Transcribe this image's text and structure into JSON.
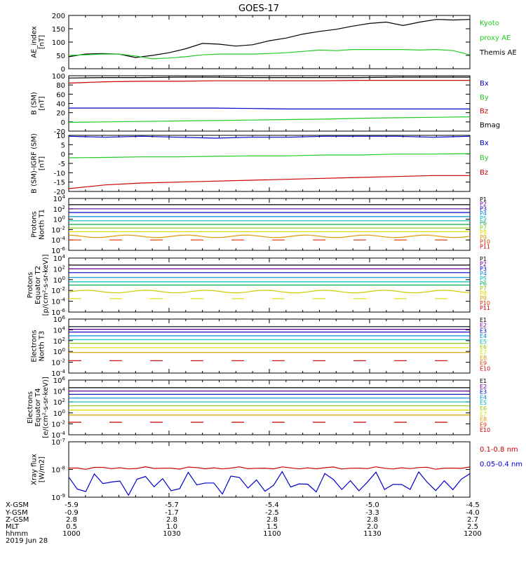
{
  "title": "GOES-17",
  "colors": {
    "black": "#000000",
    "green": "#22cc22",
    "red": "#cc0000",
    "blue": "#0000cc"
  },
  "chart_data": [
    {
      "type": "line",
      "ylabel": [
        "AE_index",
        "[nT]"
      ],
      "ylim": [
        0,
        200
      ],
      "yticks": [
        "0",
        "50",
        "100",
        "150",
        "200"
      ],
      "legend": [
        {
          "name": "Kyoto",
          "color": "#22cc22"
        },
        {
          "name": "proxy AE",
          "color": "#22cc22"
        },
        {
          "name": "Themis AE",
          "color": "#000000"
        }
      ],
      "x_hhmm": [
        1000,
        1005,
        1010,
        1015,
        1020,
        1025,
        1030,
        1035,
        1040,
        1045,
        1050,
        1055,
        1100,
        1105,
        1110,
        1115,
        1120,
        1125,
        1130,
        1135,
        1140,
        1145,
        1150,
        1155,
        1200
      ],
      "series": [
        {
          "name": "Themis AE",
          "color": "#000000",
          "values": [
            45,
            55,
            57,
            55,
            42,
            50,
            60,
            75,
            95,
            92,
            85,
            90,
            105,
            115,
            130,
            140,
            148,
            160,
            170,
            175,
            162,
            175,
            185,
            183,
            185
          ]
        },
        {
          "name": "Kyoto proxy AE",
          "color": "#22cc22",
          "values": [
            50,
            52,
            55,
            55,
            48,
            37,
            40,
            45,
            52,
            55,
            55,
            55,
            57,
            60,
            65,
            70,
            68,
            72,
            72,
            72,
            72,
            70,
            72,
            68,
            52
          ]
        }
      ]
    },
    {
      "type": "line",
      "ylabel": [
        "B (SM)",
        "[nT]"
      ],
      "ylim": [
        -20,
        100
      ],
      "yticks": [
        "-20",
        "0",
        "20",
        "40",
        "60",
        "80",
        "100"
      ],
      "legend": [
        {
          "name": "Bx",
          "color": "#0000cc"
        },
        {
          "name": "By",
          "color": "#22cc22"
        },
        {
          "name": "Bz",
          "color": "#cc0000"
        },
        {
          "name": "Bmag",
          "color": "#000000"
        }
      ],
      "series": [
        {
          "name": "Bmag",
          "color": "#000000",
          "values": [
            95,
            96,
            96,
            97,
            97,
            96,
            96,
            96,
            96,
            97,
            97,
            97
          ]
        },
        {
          "name": "Bz",
          "color": "#cc0000",
          "values": [
            84,
            87,
            88,
            88,
            89,
            89,
            89,
            89,
            90,
            90,
            90,
            90
          ]
        },
        {
          "name": "Bx",
          "color": "#0000cc",
          "values": [
            30,
            30,
            30,
            30,
            30,
            29,
            28,
            28,
            28,
            28,
            28,
            28
          ]
        },
        {
          "name": "By",
          "color": "#22cc22",
          "values": [
            -1,
            0,
            1,
            2,
            3,
            4,
            5,
            6,
            8,
            9,
            10,
            11
          ]
        }
      ]
    },
    {
      "type": "line",
      "ylabel": [
        "B (SM)-IGRF (SM)",
        "[nT]"
      ],
      "ylim": [
        -20,
        10
      ],
      "yticks": [
        "-20",
        "-15",
        "-10",
        "-5",
        "0",
        "5",
        "10"
      ],
      "legend": [
        {
          "name": "Bx",
          "color": "#0000cc"
        },
        {
          "name": "By",
          "color": "#22cc22"
        },
        {
          "name": "Bz",
          "color": "#cc0000"
        }
      ],
      "series": [
        {
          "name": "Bx",
          "color": "#0000cc",
          "values": [
            9.5,
            9.0,
            9.5,
            9.0,
            8.5,
            9.0,
            9.0,
            9.5,
            9.5,
            9.5,
            9.0,
            9.5
          ]
        },
        {
          "name": "By",
          "color": "#22cc22",
          "values": [
            -2.0,
            -1.8,
            -1.5,
            -1.5,
            -1.2,
            -1.0,
            -1.0,
            -0.5,
            -0.5,
            0.0,
            0.0,
            0.2
          ]
        },
        {
          "name": "Bz",
          "color": "#cc0000",
          "values": [
            -18.5,
            -16.5,
            -15.5,
            -15.0,
            -14.5,
            -14.0,
            -13.5,
            -13.0,
            -12.5,
            -12.0,
            -11.5,
            -11.5
          ]
        }
      ]
    },
    {
      "type": "line",
      "log_scale": true,
      "ylabel": [
        "Protons",
        "North T1"
      ],
      "ylim": [
        -6,
        4
      ],
      "yticks": [
        "10^-6",
        "10^-4",
        "10^-2",
        "10^0",
        "10^2",
        "10^4"
      ],
      "legend": [
        {
          "name": "P1",
          "color": "#000000"
        },
        {
          "name": "P2",
          "color": "#660099"
        },
        {
          "name": "P3",
          "color": "#0000cc"
        },
        {
          "name": "P4",
          "color": "#0088dd"
        },
        {
          "name": "P5",
          "color": "#00bbbb"
        },
        {
          "name": "P6",
          "color": "#00aa55"
        },
        {
          "name": "P7",
          "color": "#88cc00"
        },
        {
          "name": "P8",
          "color": "#dddd00"
        },
        {
          "name": "P9",
          "color": "#dd9900"
        },
        {
          "name": "P10",
          "color": "#dd3300"
        },
        {
          "name": "P11",
          "color": "#cc0000"
        }
      ],
      "series": [
        {
          "name": "P1",
          "color": "#000000",
          "level": 2.8
        },
        {
          "name": "P2",
          "color": "#660099",
          "level": 2.0
        },
        {
          "name": "P3",
          "color": "#0000cc",
          "level": 1.3
        },
        {
          "name": "P4",
          "color": "#0088dd",
          "level": 0.5
        },
        {
          "name": "P5",
          "color": "#00bbbb",
          "level": -0.3
        },
        {
          "name": "P6",
          "color": "#00aa55",
          "level": -1.0
        },
        {
          "name": "P7",
          "color": "#88cc00",
          "level": -1.7
        },
        {
          "name": "P8",
          "color": "#dddd00",
          "level": -2.4
        },
        {
          "name": "P9",
          "color": "#dd9900",
          "level": -3.3,
          "wavy": true
        },
        {
          "name": "P10",
          "color": "#dd3300",
          "level": -4.0,
          "dashed": true
        }
      ]
    },
    {
      "type": "line",
      "log_scale": true,
      "ylabel": [
        "Protons",
        "Equator T2",
        "[p/(cm²-s-sr-keV)]"
      ],
      "ylim": [
        -6,
        4
      ],
      "yticks": [
        "10^-6",
        "10^-4",
        "10^-2",
        "10^0",
        "10^2",
        "10^4"
      ],
      "legend": [
        {
          "name": "P1",
          "color": "#000000"
        },
        {
          "name": "P2",
          "color": "#660099"
        },
        {
          "name": "P3",
          "color": "#0000cc"
        },
        {
          "name": "P4",
          "color": "#0088dd"
        },
        {
          "name": "P5",
          "color": "#00bbbb"
        },
        {
          "name": "P6",
          "color": "#00aa55"
        },
        {
          "name": "P7",
          "color": "#88cc00"
        },
        {
          "name": "P8",
          "color": "#dddd00"
        },
        {
          "name": "P9",
          "color": "#dd9900"
        },
        {
          "name": "P10",
          "color": "#dd3300"
        },
        {
          "name": "P11",
          "color": "#cc0000"
        }
      ],
      "series": [
        {
          "name": "P1",
          "color": "#000000",
          "level": 2.7
        },
        {
          "name": "P2",
          "color": "#660099",
          "level": 2.0
        },
        {
          "name": "P3",
          "color": "#0000cc",
          "level": 1.3
        },
        {
          "name": "P4",
          "color": "#0088dd",
          "level": 0.4
        },
        {
          "name": "P5",
          "color": "#00bbbb",
          "level": -0.4
        },
        {
          "name": "P6",
          "color": "#00aa55",
          "level": -1.0
        },
        {
          "name": "P7",
          "color": "#cccc00",
          "level": -2.2,
          "wavy": true
        },
        {
          "name": "P8",
          "color": "#dddd00",
          "level": -3.5,
          "dashed": true
        }
      ]
    },
    {
      "type": "line",
      "log_scale": true,
      "ylabel": [
        "Electrons",
        "North T3"
      ],
      "ylim": [
        -4,
        6
      ],
      "yticks": [
        "10^-4",
        "10^-2",
        "10^0",
        "10^2",
        "10^4",
        "10^6"
      ],
      "legend": [
        {
          "name": "E1",
          "color": "#000000"
        },
        {
          "name": "E2",
          "color": "#660099"
        },
        {
          "name": "E3",
          "color": "#0000cc"
        },
        {
          "name": "E4",
          "color": "#0088dd"
        },
        {
          "name": "E5",
          "color": "#00bbbb"
        },
        {
          "name": "E6",
          "color": "#88cc00"
        },
        {
          "name": "E7",
          "color": "#dddd00"
        },
        {
          "name": "E8",
          "color": "#dd9900"
        },
        {
          "name": "E9",
          "color": "#dd3300"
        },
        {
          "name": "E10",
          "color": "#cc0000"
        }
      ],
      "series": [
        {
          "name": "E1",
          "color": "#000000",
          "level": 4.6
        },
        {
          "name": "E2",
          "color": "#660099",
          "level": 4.1
        },
        {
          "name": "E3",
          "color": "#0000cc",
          "level": 3.6
        },
        {
          "name": "E4",
          "color": "#0088dd",
          "level": 2.9
        },
        {
          "name": "E5",
          "color": "#00bbbb",
          "level": 2.2
        },
        {
          "name": "E6",
          "color": "#88cc00",
          "level": 1.5
        },
        {
          "name": "E7",
          "color": "#dddd00",
          "level": 0.7
        },
        {
          "name": "E8",
          "color": "#dd9900",
          "level": -0.2
        },
        {
          "name": "E10",
          "color": "#cc0000",
          "level": -1.7,
          "dashed": true
        }
      ]
    },
    {
      "type": "line",
      "log_scale": true,
      "ylabel": [
        "Electrons",
        "Equator T4",
        "[e/(cm²-s-sr-keV)]"
      ],
      "ylim": [
        -4,
        6
      ],
      "yticks": [
        "10^-4",
        "10^-2",
        "10^0",
        "10^2",
        "10^4",
        "10^6"
      ],
      "legend": [
        {
          "name": "E1",
          "color": "#000000"
        },
        {
          "name": "E2",
          "color": "#660099"
        },
        {
          "name": "E3",
          "color": "#0000cc"
        },
        {
          "name": "E4",
          "color": "#0088dd"
        },
        {
          "name": "E5",
          "color": "#00bbbb"
        },
        {
          "name": "E6",
          "color": "#88cc00"
        },
        {
          "name": "E7",
          "color": "#dddd00"
        },
        {
          "name": "E8",
          "color": "#dd9900"
        },
        {
          "name": "E9",
          "color": "#dd3300"
        },
        {
          "name": "E10",
          "color": "#cc0000"
        }
      ],
      "series": [
        {
          "name": "E1",
          "color": "#000000",
          "level": 4.6
        },
        {
          "name": "E2",
          "color": "#660099",
          "level": 4.0
        },
        {
          "name": "E3",
          "color": "#0000cc",
          "level": 3.4
        },
        {
          "name": "E4",
          "color": "#0088dd",
          "level": 2.7
        },
        {
          "name": "E5",
          "color": "#00bbbb",
          "level": 2.0
        },
        {
          "name": "E6",
          "color": "#88cc00",
          "level": 1.3
        },
        {
          "name": "E7",
          "color": "#dddd00",
          "level": 0.5
        },
        {
          "name": "E8",
          "color": "#dd9900",
          "level": -0.4
        },
        {
          "name": "E10",
          "color": "#cc0000",
          "level": -1.7,
          "dashed": true
        }
      ]
    },
    {
      "type": "line",
      "log_scale": true,
      "ylabel": [
        "Xray flux",
        "[W/m2]"
      ],
      "ylim": [
        -9,
        -7
      ],
      "yticks": [
        "10^-9",
        "10^-8",
        "10^-7"
      ],
      "legend": [
        {
          "name": "0.1-0.8 nm",
          "color": "#cc0000"
        },
        {
          "name": "0.05-0.4 nm",
          "color": "#0000cc"
        }
      ],
      "series": [
        {
          "name": "0.1-0.8 nm",
          "color": "#cc0000",
          "level": -7.95,
          "noise": 0.05
        },
        {
          "name": "0.05-0.4 nm",
          "color": "#0000cc",
          "level": -8.5,
          "noise": 0.45
        }
      ]
    }
  ],
  "ephemeris": {
    "row_labels": [
      "X-GSM",
      "Y-GSM",
      "Z-GSM",
      "MLT",
      "hhmm",
      "2019 Jun 28"
    ],
    "columns": [
      [
        "-5.9",
        "-0.9",
        "2.8",
        "0.5",
        "1000"
      ],
      [
        "-5.7",
        "-1.7",
        "2.8",
        "1.0",
        "1030"
      ],
      [
        "-5.4",
        "-2.5",
        "2.8",
        "1.5",
        "1100"
      ],
      [
        "-5.0",
        "-3.3",
        "2.8",
        "2.0",
        "1130"
      ],
      [
        "-4.5",
        "-4.0",
        "2.7",
        "2.5",
        "1200"
      ]
    ]
  }
}
